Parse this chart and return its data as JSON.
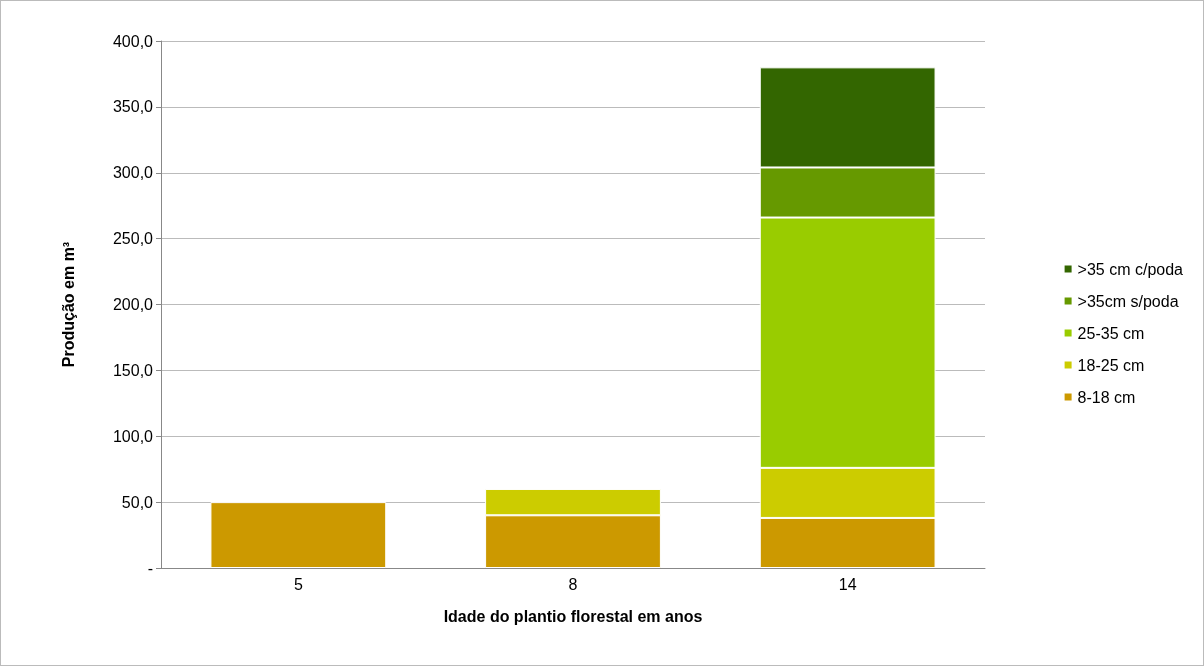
{
  "chart_data": {
    "type": "bar",
    "stacked": true,
    "xlabel": "Idade do plantio florestal em anos",
    "ylabel": "Produção em m³",
    "categories": [
      "5",
      "8",
      "14"
    ],
    "series": [
      {
        "name": "8-18 cm",
        "color": "#cc9900",
        "values": [
          50,
          40,
          38
        ]
      },
      {
        "name": "18-25 cm",
        "color": "#cccc00",
        "values": [
          null,
          20,
          38
        ]
      },
      {
        "name": "25-35 cm",
        "color": "#99cc00",
        "values": [
          null,
          null,
          190
        ]
      },
      {
        "name": ">35cm s/poda",
        "color": "#669900",
        "values": [
          null,
          null,
          38
        ]
      },
      {
        "name": ">35 cm c/poda",
        "color": "#336600",
        "values": [
          null,
          null,
          76
        ]
      }
    ],
    "ylim": [
      0,
      400
    ],
    "yticks": [
      {
        "value": 0,
        "label": "-"
      },
      {
        "value": 50,
        "label": "50,0"
      },
      {
        "value": 100,
        "label": "100,0"
      },
      {
        "value": 150,
        "label": "150,0"
      },
      {
        "value": 200,
        "label": "200,0"
      },
      {
        "value": 250,
        "label": "250,0"
      },
      {
        "value": 300,
        "label": "300,0"
      },
      {
        "value": 350,
        "label": "350,0"
      },
      {
        "value": 400,
        "label": "400,0"
      }
    ],
    "grid": "y",
    "legend": "right"
  }
}
